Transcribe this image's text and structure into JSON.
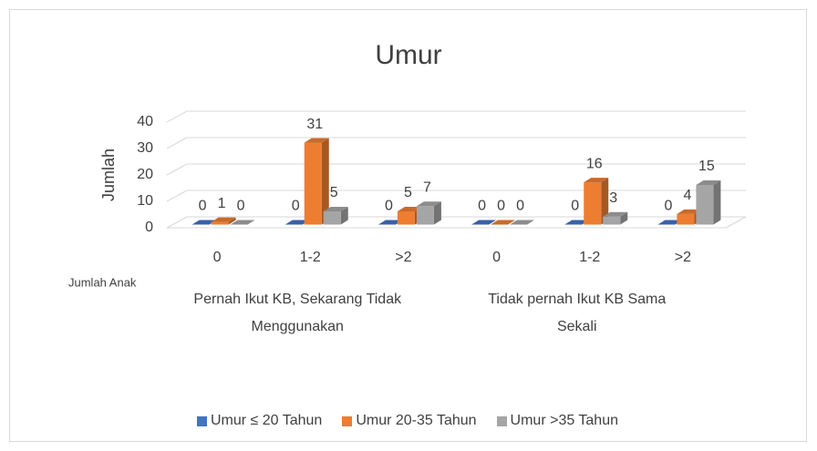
{
  "chart_data": {
    "type": "bar3d",
    "title": "Umur",
    "y_label": "Jumlah",
    "x_label": "Jumlah Anak",
    "categories": [
      "0",
      "1-2",
      ">2",
      "0",
      "1-2",
      ">2"
    ],
    "groups": [
      "Pernah Ikut KB, Sekarang Tidak Menggunakan",
      "Tidak pernah Ikut KB Sama Sekali"
    ],
    "series": [
      {
        "name": "Umur ≤ 20 Tahun",
        "color": "#4472c4",
        "values": [
          0,
          0,
          0,
          0,
          0,
          0
        ]
      },
      {
        "name": "Umur 20-35 Tahun",
        "color": "#ed7d31",
        "values": [
          1,
          31,
          5,
          0,
          16,
          4
        ]
      },
      {
        "name": "Umur >35 Tahun",
        "color": "#a5a5a5",
        "values": [
          0,
          5,
          7,
          0,
          3,
          15
        ]
      }
    ],
    "ylim": [
      0,
      40
    ],
    "yticks": [
      0,
      10,
      20,
      30,
      40
    ],
    "grid": true,
    "legend": "bottom"
  }
}
